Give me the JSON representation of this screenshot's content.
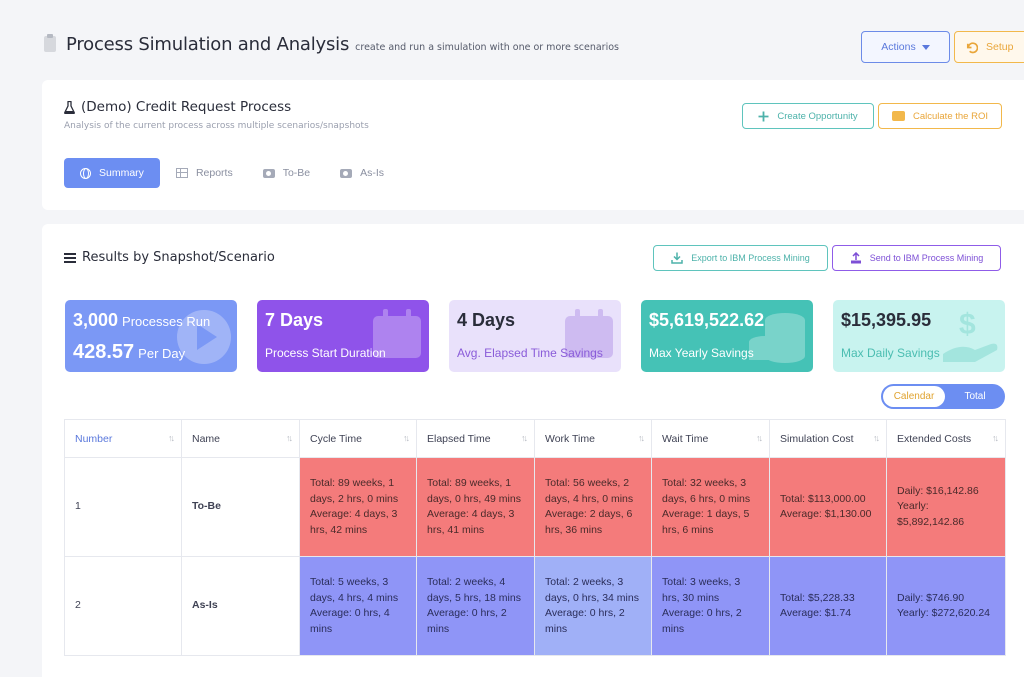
{
  "header": {
    "title": "Process Simulation and Analysis",
    "subtitle": "create and run a simulation with one or more scenarios",
    "actions_label": "Actions",
    "setup_label": "Setup"
  },
  "process": {
    "title": "(Demo) Credit Request Process",
    "description": "Analysis of the current process across multiple scenarios/snapshots",
    "create_opportunity_label": "Create Opportunity",
    "calculate_roi_label": "Calculate the ROI"
  },
  "tabs": [
    {
      "label": "Summary",
      "icon": "globe-icon",
      "active": true
    },
    {
      "label": "Reports",
      "icon": "table-icon",
      "active": false
    },
    {
      "label": "To-Be",
      "icon": "camera-icon",
      "active": false
    },
    {
      "label": "As-Is",
      "icon": "camera-icon",
      "active": false
    }
  ],
  "results": {
    "title": "Results by Snapshot/Scenario",
    "export_label": "Export to IBM Process Mining",
    "send_label": "Send to IBM Process Mining"
  },
  "stats": {
    "processes_value": "3,000",
    "processes_label": "Processes Run",
    "per_day_value": "428.57",
    "per_day_label": "Per Day",
    "start_duration_value": "7 Days",
    "start_duration_label": "Process Start Duration",
    "elapsed_value": "4 Days",
    "elapsed_label": "Avg. Elapsed Time Savings",
    "yearly_value": "$5,619,522.62",
    "yearly_label": "Max Yearly Savings",
    "daily_value": "$15,395.95",
    "daily_label": "Max Daily Savings"
  },
  "toggle": {
    "calendar": "Calendar",
    "total": "Total",
    "selected": "Calendar"
  },
  "table": {
    "columns": [
      "Number",
      "Name",
      "Cycle Time",
      "Elapsed Time",
      "Work Time",
      "Wait Time",
      "Simulation Cost",
      "Extended Costs"
    ],
    "rows": [
      {
        "number": "1",
        "name": "To-Be",
        "cycle": [
          "Total: 89 weeks, 1 days, 2 hrs, 0 mins",
          "Average: 4 days, 3 hrs, 42 mins"
        ],
        "elapsed": [
          "Total: 89 weeks, 1 days, 0 hrs, 49 mins",
          "Average: 4 days, 3 hrs, 41 mins"
        ],
        "work": [
          "Total: 56 weeks, 2 days, 4 hrs, 0 mins",
          "Average: 2 days, 6 hrs, 36 mins"
        ],
        "wait": [
          "Total: 32 weeks, 3 days, 6 hrs, 0 mins",
          "Average: 1 days, 5 hrs, 6 mins"
        ],
        "sim_cost": [
          "Total: $113,000.00",
          "Average: $1,130.00"
        ],
        "ext_cost": [
          "Daily: $16,142.86",
          "Yearly: $5,892,142.86"
        ]
      },
      {
        "number": "2",
        "name": "As-Is",
        "cycle": [
          "Total: 5 weeks, 3 days, 4 hrs, 4 mins",
          "Average: 0 hrs, 4 mins"
        ],
        "elapsed": [
          "Total: 2 weeks, 4 days, 5 hrs, 18 mins",
          "Average: 0 hrs, 2 mins"
        ],
        "work": [
          "Total: 2 weeks, 3 days, 0 hrs, 34 mins",
          "Average: 0 hrs, 2 mins"
        ],
        "wait": [
          "Total: 3 weeks, 3 hrs, 30 mins",
          "Average: 0 hrs, 2 mins"
        ],
        "sim_cost": [
          "Total: $5,228.33",
          "Average: $1.74"
        ],
        "ext_cost": [
          "Daily: $746.90",
          "Yearly: $272,620.24"
        ]
      }
    ]
  },
  "colors": {
    "primary": "#6c8ef2",
    "to_be_row": "#f47b7b",
    "as_is_row": "#8f95f7",
    "teal": "#45c2b6",
    "purple": "#8f53ea",
    "orange": "#e9a63a"
  }
}
